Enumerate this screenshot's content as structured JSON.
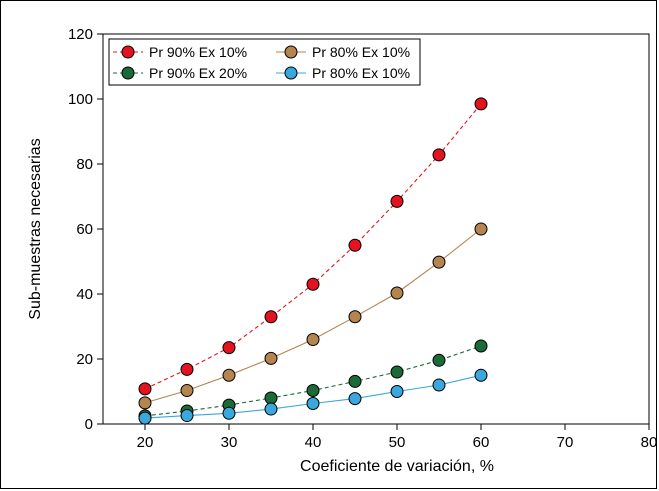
{
  "chart_data": {
    "type": "scatter",
    "xlabel": "Coeficiente de variación, %",
    "ylabel": "Sub-muestras necesarias",
    "xlim": [
      15,
      80
    ],
    "ylim": [
      0,
      120
    ],
    "x_ticks": [
      "20",
      "30",
      "40",
      "50",
      "60",
      "70",
      "80"
    ],
    "y_ticks": [
      "0",
      "20",
      "40",
      "60",
      "80",
      "100",
      "120"
    ],
    "x_tick_values": [
      20,
      30,
      40,
      50,
      60,
      70,
      80
    ],
    "y_tick_values": [
      0,
      20,
      40,
      60,
      80,
      100,
      120
    ],
    "x": [
      20,
      25,
      30,
      35,
      40,
      45,
      50,
      55,
      60
    ],
    "legend_position": "top-left",
    "grid": false,
    "series": [
      {
        "name": "Pr 90% Ex 10%",
        "color": "#e3141f",
        "line": "dashed",
        "values": [
          10.8,
          16.8,
          23.5,
          33.0,
          43.0,
          55.0,
          68.5,
          82.8,
          98.5
        ]
      },
      {
        "name": "Pr 80% Ex 10%",
        "color": "#b5854f",
        "line": "solid",
        "values": [
          6.5,
          10.3,
          15.0,
          20.2,
          26.0,
          33.0,
          40.3,
          49.8,
          60.0
        ]
      },
      {
        "name": "Pr 90% Ex 20%",
        "color": "#1a6b38",
        "line": "dashed",
        "values": [
          2.5,
          4.0,
          5.8,
          8.0,
          10.3,
          13.1,
          16.0,
          19.6,
          24.0
        ]
      },
      {
        "name": "Pr 80% Ex 10%",
        "color": "#3aa7dd",
        "line": "solid",
        "values": [
          1.8,
          2.6,
          3.3,
          4.6,
          6.3,
          7.8,
          10.0,
          12.0,
          15.0
        ]
      }
    ]
  }
}
